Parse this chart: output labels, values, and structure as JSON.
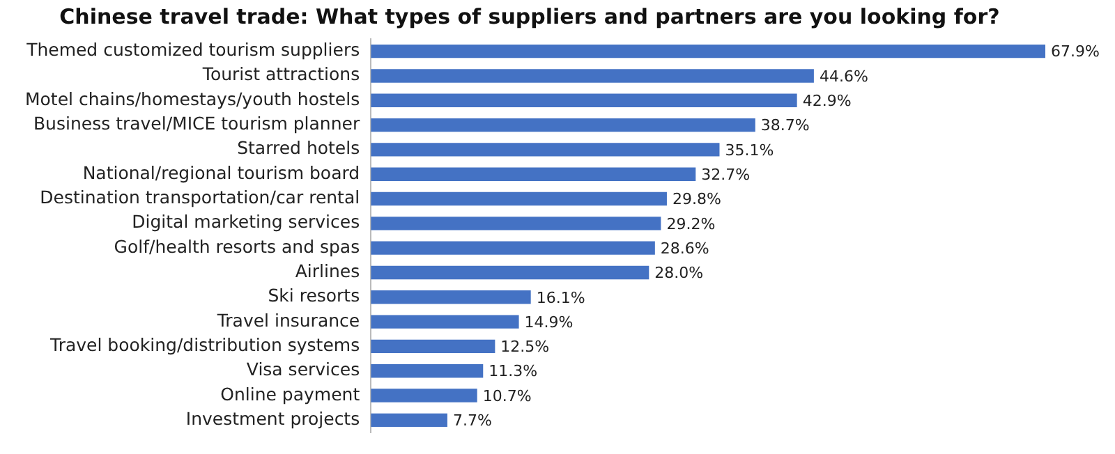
{
  "chart_data": {
    "type": "bar",
    "orientation": "horizontal",
    "title": "Chinese travel trade: What types of suppliers and partners are you looking for?",
    "categories": [
      "Themed customized tourism suppliers",
      "Tourist attractions",
      "Motel chains/homestays/youth hostels",
      "Business travel/MICE tourism planner",
      "Starred hotels",
      "National/regional tourism board",
      "Destination transportation/car rental",
      "Digital marketing services",
      "Golf/health resorts and spas",
      "Airlines",
      "Ski resorts",
      "Travel insurance",
      "Travel booking/distribution systems",
      "Visa services",
      "Online payment",
      "Investment projects"
    ],
    "values": [
      67.9,
      44.6,
      42.9,
      38.7,
      35.1,
      32.7,
      29.8,
      29.2,
      28.6,
      28.0,
      16.1,
      14.9,
      12.5,
      11.3,
      10.7,
      7.7
    ],
    "value_labels": [
      "67.9%",
      "44.6%",
      "42.9%",
      "38.7%",
      "35.1%",
      "32.7%",
      "29.8%",
      "29.2%",
      "28.6%",
      "28.0%",
      "16.1%",
      "14.9%",
      "12.5%",
      "11.3%",
      "10.7%",
      "7.7%"
    ],
    "color": "#4472c4"
  }
}
